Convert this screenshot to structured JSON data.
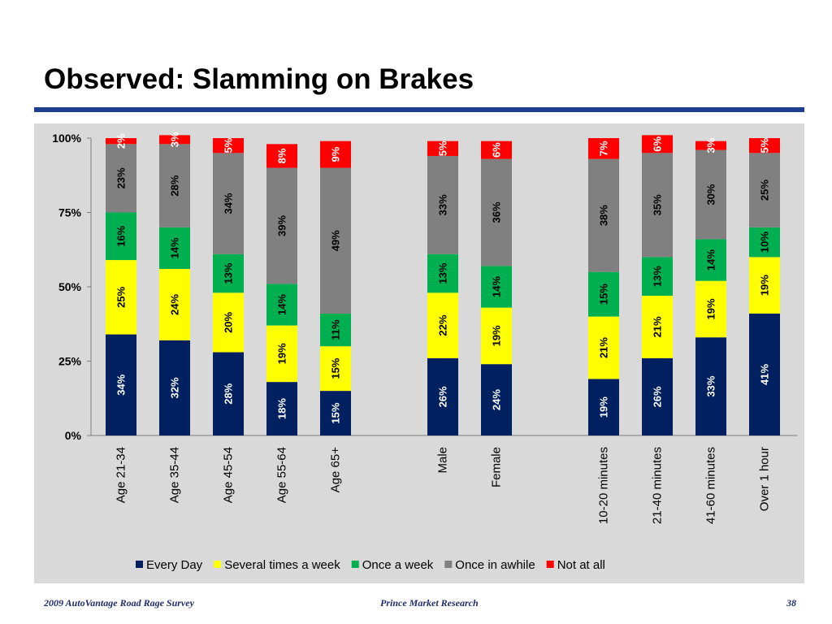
{
  "page": {
    "title": "Observed: Slamming on Brakes",
    "footer_left": "2009 AutoVantage Road Rage Survey",
    "footer_center": "Prince Market Research",
    "page_number": "38"
  },
  "chart_data": {
    "type": "bar",
    "stacked": true,
    "percent_stacked": true,
    "categories": [
      "Age 21-34",
      "Age 35-44",
      "Age 45-54",
      "Age 55-64",
      "Age 65+",
      "Male",
      "Female",
      "10-20 minutes",
      "21-40 minutes",
      "41-60 minutes",
      "Over 1 hour"
    ],
    "series": [
      {
        "name": "Every Day",
        "color": "#002060",
        "values": [
          34,
          32,
          28,
          18,
          15,
          26,
          24,
          19,
          26,
          33,
          41
        ]
      },
      {
        "name": "Several times a week",
        "color": "#ffff00",
        "values": [
          25,
          24,
          20,
          19,
          15,
          22,
          19,
          21,
          21,
          19,
          19
        ]
      },
      {
        "name": "Once a week",
        "color": "#00b050",
        "values": [
          16,
          14,
          13,
          14,
          11,
          13,
          14,
          15,
          13,
          14,
          10
        ]
      },
      {
        "name": "Once in awhile",
        "color": "#808080",
        "values": [
          23,
          28,
          34,
          39,
          49,
          33,
          36,
          38,
          35,
          30,
          25
        ]
      },
      {
        "name": "Not at all",
        "color": "#ff0000",
        "values": [
          2,
          3,
          5,
          8,
          9,
          5,
          6,
          7,
          6,
          3,
          5
        ]
      }
    ],
    "y_ticks": [
      "0%",
      "25%",
      "50%",
      "75%",
      "100%"
    ],
    "ylim": [
      0,
      100
    ],
    "value_suffix": "%",
    "grid": false,
    "legend_position": "bottom"
  }
}
